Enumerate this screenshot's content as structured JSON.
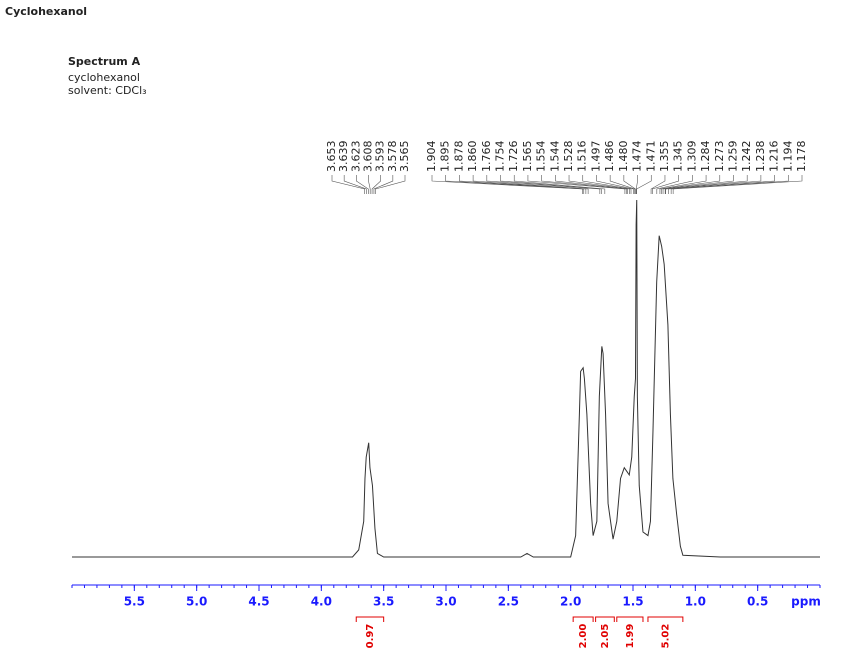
{
  "chart_data": {
    "type": "line",
    "title": "Cyclohexanol",
    "subtitle": "Spectrum A",
    "notes": [
      "cyclohexanol",
      "solvent: CDCl₃"
    ],
    "x_label": "ppm",
    "xlim": [
      6.0,
      0
    ],
    "ylim": [
      0,
      100
    ],
    "xticks": [
      5.5,
      {
        "value": 5,
        "label": "5.0"
      },
      4.5,
      {
        "value": 4,
        "label": "4.0"
      },
      3.5,
      {
        "value": 3,
        "label": "3.0"
      },
      2.5,
      {
        "value": 2,
        "label": "2.0"
      },
      1.5,
      {
        "value": 1,
        "label": "1.0"
      },
      0.5
    ],
    "axis_color": "#1a1aff",
    "x": [
      6.0,
      3.75,
      3.7,
      3.66,
      3.65,
      3.64,
      3.62,
      3.61,
      3.59,
      3.57,
      3.55,
      3.5,
      2.4,
      2.35,
      2.3,
      2.0,
      1.96,
      1.93,
      1.92,
      1.9,
      1.89,
      1.87,
      1.84,
      1.82,
      1.79,
      1.77,
      1.75,
      1.74,
      1.72,
      1.7,
      1.66,
      1.63,
      1.6,
      1.57,
      1.55,
      1.53,
      1.51,
      1.49,
      1.48,
      1.475,
      1.47,
      1.465,
      1.45,
      1.42,
      1.38,
      1.36,
      1.34,
      1.31,
      1.29,
      1.27,
      1.25,
      1.22,
      1.2,
      1.18,
      1.15,
      1.12,
      1.1,
      0.8,
      0
    ],
    "series": [
      {
        "color": "#333333",
        "values": [
          0,
          0,
          2,
          10,
          22,
          28,
          32,
          25,
          20,
          8,
          1,
          0,
          0,
          1,
          0,
          0,
          6,
          40,
          52,
          53,
          50,
          40,
          15,
          6,
          10,
          45,
          59,
          57,
          40,
          15,
          5,
          10,
          22,
          25,
          24,
          23,
          28,
          45,
          50,
          93,
          100,
          45,
          20,
          7,
          6,
          10,
          35,
          77,
          90,
          87,
          82,
          65,
          40,
          22,
          12,
          3,
          0.5,
          0,
          0
        ]
      }
    ],
    "peak_groups": [
      [
        3.653,
        3.639,
        3.623,
        3.608,
        3.593,
        3.578,
        3.565
      ],
      [
        1.904,
        1.895,
        1.878,
        {
          "value": 1.86,
          "label": "1.860"
        },
        1.766,
        1.754,
        1.726,
        1.565,
        1.554,
        1.544,
        1.528,
        1.516,
        1.497,
        1.486,
        {
          "value": 1.48,
          "label": "1.480"
        },
        1.474,
        1.471,
        1.355,
        1.345,
        1.309,
        1.284,
        1.273,
        1.259,
        1.242,
        1.238,
        1.216,
        1.194,
        1.178
      ]
    ],
    "integral_color": "#e00000",
    "integrals": [
      {
        "range": [
          3.72,
          3.5
        ],
        "value": 0.97
      },
      {
        "range": [
          1.98,
          1.82
        ],
        "value": {
          "value": 2,
          "label": "2.00"
        }
      },
      {
        "range": [
          1.8,
          1.65
        ],
        "value": 2.05
      },
      {
        "range": [
          1.63,
          1.42
        ],
        "value": 1.99
      },
      {
        "range": [
          1.38,
          1.1
        ],
        "value": 5.02
      }
    ]
  }
}
